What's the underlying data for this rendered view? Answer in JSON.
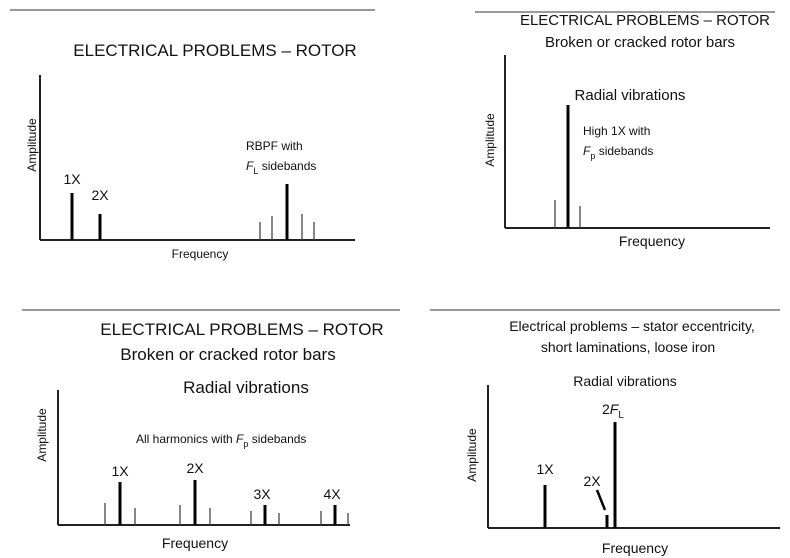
{
  "panels": [
    {
      "title": "ELECTRICAL PROBLEMS – ROTOR",
      "y_axis": "Amplitude",
      "x_axis": "Frequency",
      "labels": {
        "x1": "1X",
        "x2": "2X",
        "rbpf": "RBPF with",
        "sb_var": "F",
        "sb_sub": "L",
        "sb_rest": " sidebands"
      }
    },
    {
      "title": "ELECTRICAL PROBLEMS – ROTOR",
      "subtitle": "Broken or cracked rotor bars",
      "note": "Radial vibrations",
      "y_axis": "Amplitude",
      "x_axis": "Frequency",
      "labels": {
        "high": "High 1X with",
        "sb_var": "F",
        "sb_sub": "p",
        "sb_rest": " sidebands"
      }
    },
    {
      "title": "ELECTRICAL PROBLEMS – ROTOR",
      "subtitle": "Broken or cracked rotor bars",
      "note": "Radial vibrations",
      "y_axis": "Amplitude",
      "x_axis": "Frequency",
      "labels": {
        "harm": "All harmonics with ",
        "sb_var": "F",
        "sb_sub": "p",
        "sb_rest": " sidebands",
        "x1": "1X",
        "x2": "2X",
        "x3": "3X",
        "x4": "4X"
      }
    },
    {
      "title": "Electrical problems – stator eccentricity,",
      "subtitle": "short laminations, loose iron",
      "note": "Radial vibrations",
      "y_axis": "Amplitude",
      "x_axis": "Frequency",
      "labels": {
        "x1": "1X",
        "x2": "2X",
        "fl_pre": "2",
        "fl_var": "F",
        "fl_sub": "L"
      }
    }
  ]
}
